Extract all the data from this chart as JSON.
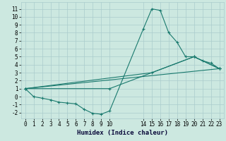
{
  "xlabel": "Humidex (Indice chaleur)",
  "background_color": "#cce8e0",
  "grid_color": "#aacccc",
  "line_color": "#1a7a6e",
  "xlim": [
    -0.5,
    23.5
  ],
  "ylim": [
    -2.7,
    11.8
  ],
  "xticks": [
    0,
    1,
    2,
    3,
    4,
    5,
    6,
    7,
    8,
    9,
    10,
    14,
    15,
    16,
    17,
    18,
    19,
    20,
    21,
    22,
    23
  ],
  "yticks": [
    -2,
    -1,
    0,
    1,
    2,
    3,
    4,
    5,
    6,
    7,
    8,
    9,
    10,
    11
  ],
  "lines": [
    {
      "x": [
        0,
        1,
        2,
        3,
        4,
        5,
        6,
        7,
        8,
        9,
        10,
        14,
        15,
        16,
        17,
        18,
        19,
        20,
        21,
        22,
        23
      ],
      "y": [
        1,
        0,
        -0.2,
        -0.4,
        -0.7,
        -0.8,
        -0.9,
        -1.6,
        -2.1,
        -2.2,
        -1.8,
        8.5,
        11,
        10.8,
        8,
        6.8,
        5.0,
        5.0,
        4.5,
        4.2,
        3.5
      ]
    },
    {
      "x": [
        0,
        23
      ],
      "y": [
        1,
        3.5
      ]
    },
    {
      "x": [
        0,
        15,
        20,
        23
      ],
      "y": [
        1,
        3.0,
        5.0,
        3.5
      ]
    },
    {
      "x": [
        0,
        10,
        20,
        23
      ],
      "y": [
        1,
        1.0,
        5.0,
        3.5
      ]
    }
  ]
}
